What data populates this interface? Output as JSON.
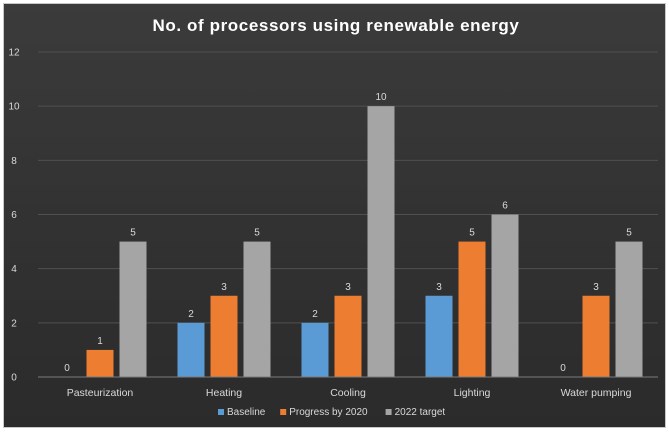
{
  "chart_data": {
    "type": "bar",
    "title": "No. of processors using renewable energy",
    "categories": [
      "Pasteurization",
      "Heating",
      "Cooling",
      "Lighting",
      "Water pumping"
    ],
    "series": [
      {
        "name": "Baseline",
        "values": [
          0,
          2,
          2,
          3,
          0
        ],
        "color": "#5b9bd5"
      },
      {
        "name": "Progress by 2020",
        "values": [
          1,
          3,
          3,
          5,
          3
        ],
        "color": "#ed7d31"
      },
      {
        "name": "2022 target",
        "values": [
          5,
          5,
          10,
          6,
          5
        ],
        "color": "#a5a5a5"
      }
    ],
    "ylim": [
      0,
      12
    ],
    "yticks": [
      0,
      2,
      4,
      6,
      8,
      10,
      12
    ],
    "grid": true,
    "legend_position": "bottom",
    "data_labels": true
  }
}
